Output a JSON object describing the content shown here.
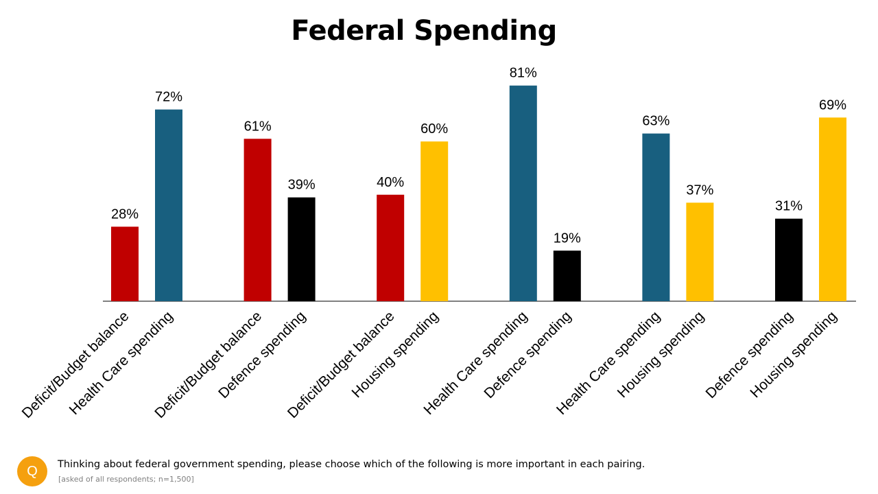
{
  "chart_data": {
    "type": "bar",
    "title": "Federal Spending",
    "xlabel": "",
    "ylabel": "",
    "ylim": [
      0,
      90
    ],
    "grid": false,
    "legend": "none",
    "value_suffix": "%",
    "colors": {
      "Deficit/Budget balance": "#c00000",
      "Health Care spending": "#185f7f",
      "Defence spending": "#000000",
      "Housing spending": "#ffc000"
    },
    "groups": [
      {
        "bars": [
          {
            "label": "Deficit/Budget balance",
            "value": 28
          },
          {
            "label": "Health Care spending",
            "value": 72
          }
        ]
      },
      {
        "bars": [
          {
            "label": "Deficit/Budget balance",
            "value": 61
          },
          {
            "label": "Defence spending",
            "value": 39
          }
        ]
      },
      {
        "bars": [
          {
            "label": "Deficit/Budget balance",
            "value": 40
          },
          {
            "label": "Housing spending",
            "value": 60
          }
        ]
      },
      {
        "bars": [
          {
            "label": "Health Care spending",
            "value": 81
          },
          {
            "label": "Defence spending",
            "value": 19
          }
        ]
      },
      {
        "bars": [
          {
            "label": "Health Care spending",
            "value": 63
          },
          {
            "label": "Housing spending",
            "value": 37
          }
        ]
      },
      {
        "bars": [
          {
            "label": "Defence spending",
            "value": 31
          },
          {
            "label": "Housing spending",
            "value": 69
          }
        ]
      }
    ]
  },
  "footer": {
    "badge": "Q",
    "question": "Thinking about federal government spending, please choose which of the following is more important in each pairing.",
    "note": "[asked of all respondents; n=1,500]"
  }
}
